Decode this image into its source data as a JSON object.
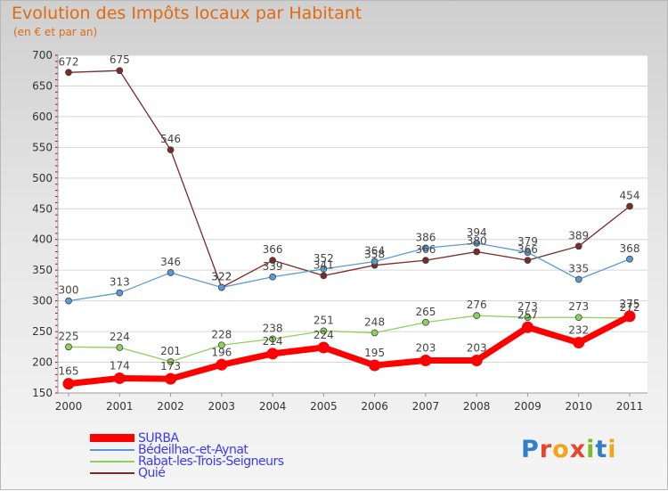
{
  "title": "Evolution des Impôts locaux par Habitant",
  "subtitle": "(en € et par an)",
  "logo": {
    "letters": [
      "P",
      "r",
      "o",
      "x",
      "i",
      "t",
      "i"
    ],
    "colors": [
      "#2e7fc8",
      "#e8452d",
      "#f2a516",
      "#e8452d",
      "#7dbb2e",
      "#2e7fc8",
      "#f2a516"
    ]
  },
  "chart_data": {
    "type": "line",
    "title": "Evolution des Impôts locaux par Habitant",
    "ylabel": "(en € et par an)",
    "xlabel": "",
    "categories": [
      "2000",
      "2001",
      "2002",
      "2003",
      "2004",
      "2005",
      "2006",
      "2007",
      "2008",
      "2009",
      "2010",
      "2011"
    ],
    "ylim": [
      150,
      700
    ],
    "yticks": [
      150,
      200,
      250,
      300,
      350,
      400,
      450,
      500,
      550,
      600,
      650,
      700
    ],
    "series": [
      {
        "name": "SURBA",
        "color": "#ff0000",
        "values": [
          165,
          174,
          173,
          196,
          214,
          224,
          195,
          203,
          203,
          257,
          232,
          275
        ],
        "labels": [
          "165",
          "174",
          "173",
          "196",
          "214",
          "224",
          "195",
          "203",
          "203",
          "257",
          "232",
          "275"
        ]
      },
      {
        "name": "Bédeilhac-et-Aynat",
        "color": "#5b9bd5",
        "values": [
          300,
          313,
          346,
          322,
          339,
          352,
          364,
          386,
          394,
          379,
          335,
          368
        ],
        "labels": [
          "300",
          "313",
          "346",
          "322",
          "339",
          "352",
          "364",
          "386",
          "394",
          "379",
          "335",
          "368"
        ]
      },
      {
        "name": "Rabat-les-Trois-Seigneurs",
        "color": "#8fd15b",
        "values": [
          225,
          224,
          201,
          228,
          238,
          251,
          248,
          265,
          276,
          273,
          273,
          272
        ],
        "labels": [
          "225",
          "224",
          "201",
          "228",
          "238",
          "251",
          "248",
          "265",
          "276",
          "273",
          "273",
          "272"
        ]
      },
      {
        "name": "Quié",
        "color": "#7b2a2a",
        "values": [
          672,
          675,
          546,
          322,
          366,
          341,
          358,
          366,
          380,
          366,
          389,
          454
        ],
        "labels": [
          "672",
          "675",
          "546",
          "322",
          "366",
          "341",
          "358",
          "366",
          "380",
          "366",
          "389",
          "454"
        ]
      }
    ],
    "legend_position": "bottom-left"
  }
}
